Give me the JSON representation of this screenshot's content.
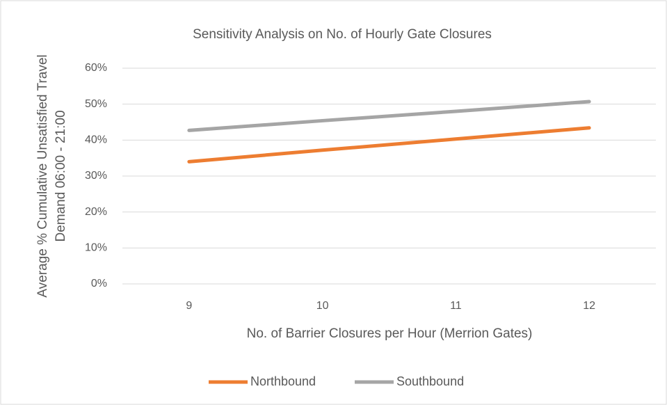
{
  "chart_data": {
    "type": "line",
    "title": "Sensitivity Analysis on No. of Hourly Gate Closures",
    "y_label": [
      "Average % Cumulative Unsatisfied Travel",
      "Demand 06:00 - 21:00"
    ],
    "x_label": "No. of Barrier Closures per Hour (Merrion Gates)",
    "categories": [
      "9",
      "10",
      "11",
      "12"
    ],
    "series": [
      {
        "name": "Northbound",
        "color": "#ed7d31",
        "values": [
          34,
          37.2,
          40.3,
          43.4
        ]
      },
      {
        "name": "Southbound",
        "color": "#a5a5a5",
        "values": [
          42.7,
          45.4,
          48.0,
          50.7
        ]
      }
    ],
    "ylim": [
      0,
      60
    ],
    "yticks": [
      {
        "value": 0,
        "label": "0%"
      },
      {
        "value": 10,
        "label": "10%"
      },
      {
        "value": 20,
        "label": "20%"
      },
      {
        "value": 30,
        "label": "30%"
      },
      {
        "value": 40,
        "label": "40%"
      },
      {
        "value": 50,
        "label": "50%"
      },
      {
        "value": 60,
        "label": "60%"
      }
    ],
    "grid": true,
    "legend": "bottom"
  }
}
